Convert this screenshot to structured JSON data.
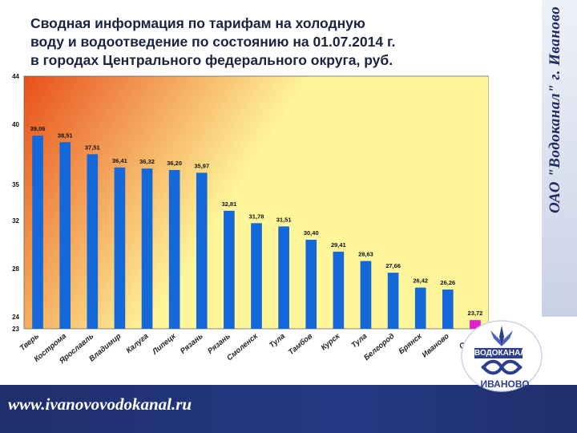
{
  "slide": {
    "title_lines": [
      "Сводная информация по тарифам на холодную",
      "воду и водоотведение по состоянию на 01.07.2014 г.",
      "в городах Центрального федерального округа, руб."
    ],
    "side_text": "ОАО \"Водоканал\"  г. Иваново",
    "website": "www.ivanovovodokanal.ru",
    "logo": {
      "top_text": "ВОДОКАНАЛ",
      "bottom_text": "ИВАНОВО"
    }
  },
  "colors": {
    "bar": "#1568d9",
    "highlight_bar": "#e020c8",
    "plot_bg_start": "#e8501a",
    "plot_bg_end": "#fff59a",
    "band": "#1f2e6c"
  },
  "chart_data": {
    "type": "bar",
    "title": "",
    "xlabel": "",
    "ylabel": "",
    "ylim": [
      23,
      44
    ],
    "yticks": [
      23,
      24,
      28,
      32,
      35,
      40,
      44
    ],
    "highlight_index": 16,
    "categories": [
      "Тверь",
      "Кострома",
      "Ярославль",
      "Владимир",
      "Калуга",
      "Липецк",
      "Рязань",
      "Рязань",
      "Смоленск",
      "Тула",
      "Тамбов",
      "Курск",
      "Тула",
      "Белгород",
      "Брянск",
      "Иваново",
      "Орел"
    ],
    "values": [
      39.06,
      38.51,
      37.51,
      36.41,
      36.32,
      36.2,
      35.97,
      32.81,
      31.78,
      31.51,
      30.4,
      29.41,
      28.63,
      27.66,
      26.42,
      26.26,
      23.72
    ],
    "value_labels": [
      "39,06",
      "38,51",
      "37,51",
      "36,41",
      "36,32",
      "36,20",
      "35,97",
      "32,81",
      "31,78",
      "31,51",
      "30,40",
      "29,41",
      "28,63",
      "27,66",
      "26,42",
      "26,26",
      "23,72"
    ]
  }
}
